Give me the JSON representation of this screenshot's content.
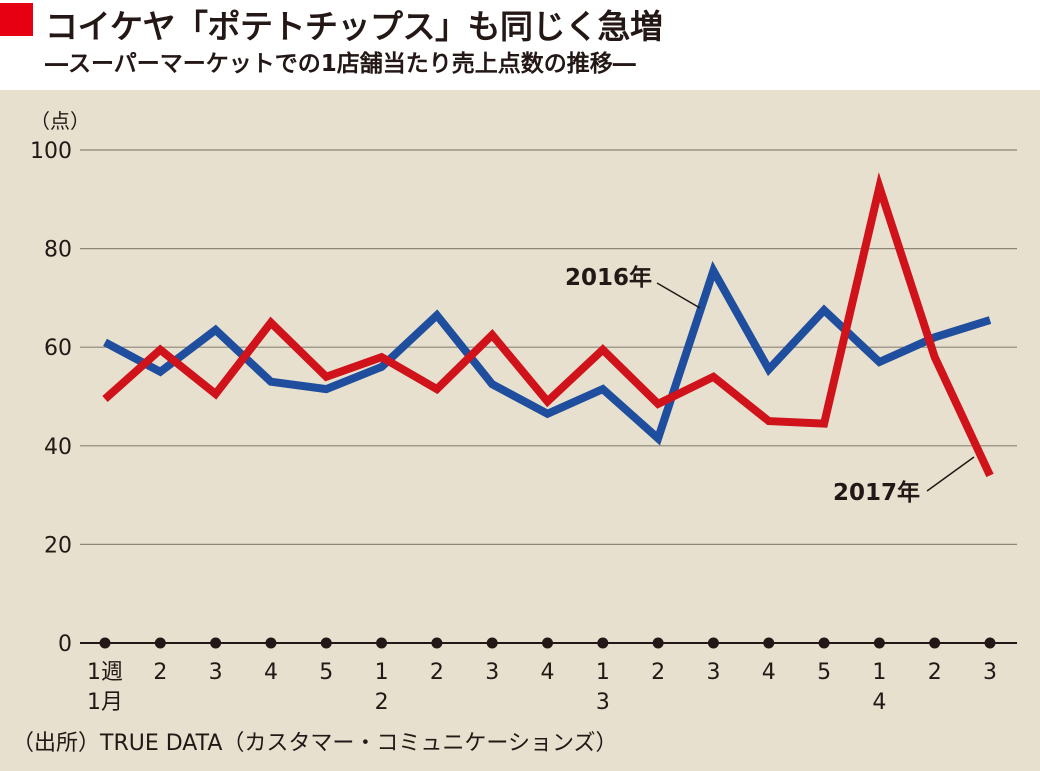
{
  "title": "コイケヤ「ポテトチップス」も同じく急増",
  "subtitle": "―スーパーマーケットでの1店舗当たり売上点数の推移―",
  "source": "（出所）TRUE DATA（カスタマー・コミュニケーションズ）",
  "colors": {
    "accent": "#e60012",
    "plot_background": "#e7e0cf",
    "series_2016": "#1f4e9e",
    "series_2017": "#d0121b"
  },
  "chart_data": {
    "type": "line",
    "ylabel": "（点）",
    "ylim": [
      0,
      100
    ],
    "yticks": [
      0,
      20,
      40,
      60,
      80,
      100
    ],
    "grid": true,
    "x": [
      "1週",
      "2",
      "3",
      "4",
      "5",
      "1",
      "2",
      "3",
      "4",
      "1",
      "2",
      "3",
      "4",
      "5",
      "1",
      "2",
      "3"
    ],
    "month_labels": [
      {
        "label": "1月",
        "at_index": 0
      },
      {
        "label": "2",
        "at_index": 5
      },
      {
        "label": "3",
        "at_index": 9
      },
      {
        "label": "4",
        "at_index": 14
      }
    ],
    "series": [
      {
        "name": "2016年",
        "color": "#1f4e9e",
        "values": [
          61,
          55,
          63.5,
          53,
          51.5,
          56,
          66.5,
          52.5,
          46.5,
          51.5,
          41.5,
          75.5,
          55.5,
          67.5,
          57,
          62,
          65.5
        ]
      },
      {
        "name": "2017年",
        "color": "#d0121b",
        "values": [
          49.5,
          59.5,
          50.5,
          65,
          54,
          58,
          51.5,
          62.5,
          49,
          59.5,
          48.5,
          54,
          45,
          44.5,
          92.5,
          58,
          34
        ]
      }
    ]
  }
}
